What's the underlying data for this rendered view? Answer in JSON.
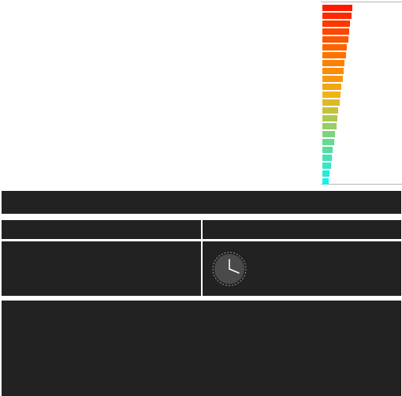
{
  "colors": {
    "panel": "#222222",
    "clock_face": "#4a4a4a",
    "clock_hands": "#ffffff",
    "gradient_top": "#ff1a00",
    "gradient_bottom": "#19f0e6"
  },
  "icons": {
    "clock": "clock-icon"
  }
}
